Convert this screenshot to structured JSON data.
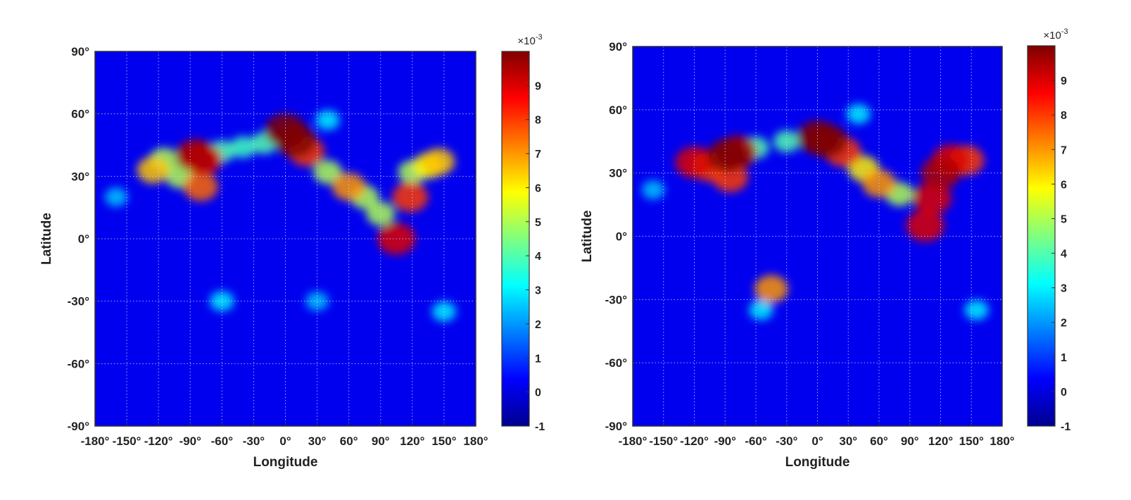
{
  "chart_data": [
    {
      "type": "heatmap",
      "title": "",
      "xlabel": "Longitude",
      "ylabel": "Latitude",
      "xlim": [
        -180,
        180
      ],
      "ylim": [
        -90,
        90
      ],
      "grid": true,
      "x_ticks": [
        -180,
        -150,
        -120,
        -90,
        -60,
        -30,
        0,
        30,
        60,
        90,
        120,
        150,
        180
      ],
      "x_tick_labels": [
        "-180°",
        "-150°",
        "-120°",
        "-90°",
        "-60°",
        "-30°",
        "0°",
        "30°",
        "60°",
        "90°",
        "120°",
        "150°",
        "180°"
      ],
      "y_ticks": [
        90,
        60,
        30,
        0,
        -30,
        -60,
        -90
      ],
      "y_tick_labels": [
        "90°",
        "60°",
        "30°",
        "0°",
        "-30°",
        "-60°",
        "-90°"
      ],
      "colorbar": {
        "colormap": "jet",
        "range": [
          -1,
          10
        ],
        "ticks": [
          9,
          8,
          7,
          6,
          5,
          4,
          3,
          2,
          1,
          0,
          -1
        ],
        "tick_labels": [
          "9",
          "8",
          "7",
          "6",
          "5",
          "4",
          "3",
          "2",
          "1",
          "0",
          "-1"
        ],
        "multiplier_base": "×10",
        "multiplier_exponent": "-3"
      },
      "background_value": 0.2,
      "hotspots": [
        {
          "lon": -125,
          "lat": 33,
          "value": 6.5
        },
        {
          "lon": -115,
          "lat": 38,
          "value": 5
        },
        {
          "lon": -100,
          "lat": 30,
          "value": 5
        },
        {
          "lon": -85,
          "lat": 40,
          "value": 9.5
        },
        {
          "lon": -78,
          "lat": 38,
          "value": 9
        },
        {
          "lon": -80,
          "lat": 25,
          "value": 7.5
        },
        {
          "lon": -60,
          "lat": 42,
          "value": 4
        },
        {
          "lon": -40,
          "lat": 44,
          "value": 3.8
        },
        {
          "lon": -20,
          "lat": 46,
          "value": 4
        },
        {
          "lon": 0,
          "lat": 52,
          "value": 10
        },
        {
          "lon": 10,
          "lat": 47,
          "value": 10
        },
        {
          "lon": 20,
          "lat": 42,
          "value": 8
        },
        {
          "lon": 40,
          "lat": 32,
          "value": 5
        },
        {
          "lon": 60,
          "lat": 25,
          "value": 7
        },
        {
          "lon": 75,
          "lat": 20,
          "value": 5
        },
        {
          "lon": 90,
          "lat": 12,
          "value": 5
        },
        {
          "lon": 105,
          "lat": 0,
          "value": 9
        },
        {
          "lon": 118,
          "lat": 20,
          "value": 8
        },
        {
          "lon": 120,
          "lat": 32,
          "value": 5
        },
        {
          "lon": 135,
          "lat": 35,
          "value": 6
        },
        {
          "lon": 145,
          "lat": 37,
          "value": 6.5
        },
        {
          "lon": 40,
          "lat": 57,
          "value": 3
        },
        {
          "lon": -60,
          "lat": -30,
          "value": 3
        },
        {
          "lon": 30,
          "lat": -30,
          "value": 2.5
        },
        {
          "lon": 150,
          "lat": -35,
          "value": 3
        },
        {
          "lon": -160,
          "lat": 20,
          "value": 2.5
        }
      ]
    },
    {
      "type": "heatmap",
      "title": "",
      "xlabel": "Longitude",
      "ylabel": "Latitude",
      "xlim": [
        -180,
        180
      ],
      "ylim": [
        -90,
        90
      ],
      "grid": true,
      "x_ticks": [
        -180,
        -150,
        -120,
        -90,
        -60,
        -30,
        0,
        30,
        60,
        90,
        120,
        150,
        180
      ],
      "x_tick_labels": [
        "-180°",
        "-150°",
        "-120°",
        "-90°",
        "-60°",
        "-30°",
        "0°",
        "30°",
        "60°",
        "90°",
        "120°",
        "150°",
        "180°"
      ],
      "y_ticks": [
        90,
        60,
        30,
        0,
        -30,
        -60,
        -90
      ],
      "y_tick_labels": [
        "90°",
        "60°",
        "30°",
        "0°",
        "-30°",
        "-60°",
        "-90°"
      ],
      "colorbar": {
        "colormap": "jet",
        "range": [
          -1,
          10
        ],
        "ticks": [
          9,
          8,
          7,
          6,
          5,
          4,
          3,
          2,
          1,
          0,
          -1
        ],
        "tick_labels": [
          "9",
          "8",
          "7",
          "6",
          "5",
          "4",
          "3",
          "2",
          "1",
          "0",
          "-1"
        ],
        "multiplier_base": "×10",
        "multiplier_exponent": "-3"
      },
      "background_value": 0.2,
      "hotspots": [
        {
          "lon": -120,
          "lat": 35,
          "value": 9
        },
        {
          "lon": -105,
          "lat": 33,
          "value": 8
        },
        {
          "lon": -88,
          "lat": 38,
          "value": 10
        },
        {
          "lon": -78,
          "lat": 40,
          "value": 9.5
        },
        {
          "lon": -85,
          "lat": 28,
          "value": 8
        },
        {
          "lon": -60,
          "lat": 42,
          "value": 4
        },
        {
          "lon": -30,
          "lat": 45,
          "value": 4
        },
        {
          "lon": 0,
          "lat": 47,
          "value": 10
        },
        {
          "lon": 10,
          "lat": 45,
          "value": 10
        },
        {
          "lon": 25,
          "lat": 40,
          "value": 8
        },
        {
          "lon": 45,
          "lat": 32,
          "value": 6
        },
        {
          "lon": 60,
          "lat": 25,
          "value": 7
        },
        {
          "lon": 80,
          "lat": 20,
          "value": 5
        },
        {
          "lon": 105,
          "lat": 5,
          "value": 9
        },
        {
          "lon": 112,
          "lat": 18,
          "value": 9
        },
        {
          "lon": 120,
          "lat": 30,
          "value": 9.5
        },
        {
          "lon": 130,
          "lat": 36,
          "value": 9
        },
        {
          "lon": 145,
          "lat": 36,
          "value": 8
        },
        {
          "lon": 40,
          "lat": 58,
          "value": 3
        },
        {
          "lon": -45,
          "lat": -25,
          "value": 7
        },
        {
          "lon": -55,
          "lat": -35,
          "value": 3
        },
        {
          "lon": 155,
          "lat": -35,
          "value": 3
        },
        {
          "lon": -160,
          "lat": 22,
          "value": 2.5
        }
      ]
    }
  ]
}
